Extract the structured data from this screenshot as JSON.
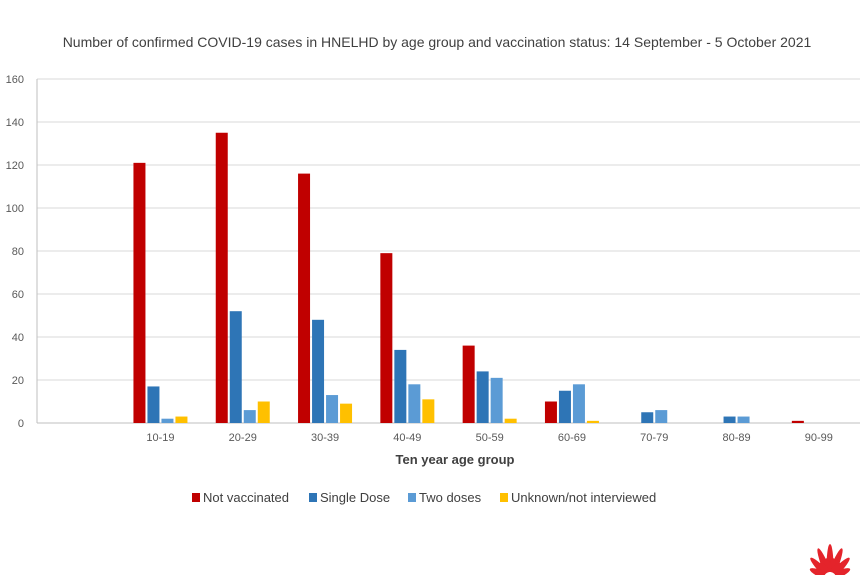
{
  "chart_data": {
    "type": "bar",
    "title": "Number of confirmed COVID-19 cases in HNELHD by age group and vaccination status: 14 September - 5 October 2021",
    "xlabel": "Ten year age group",
    "ylabel": "",
    "ylim": [
      0,
      160
    ],
    "yticks": [
      0,
      20,
      40,
      60,
      80,
      100,
      120,
      140,
      160
    ],
    "grid": true,
    "legend_position": "bottom",
    "categories": [
      "",
      "10-19",
      "20-29",
      "30-39",
      "40-49",
      "50-59",
      "60-69",
      "70-79",
      "80-89",
      "90-99"
    ],
    "series": [
      {
        "name": "Not vaccinated",
        "color": "#C00000",
        "values": [
          0,
          121,
          135,
          116,
          79,
          36,
          10,
          0,
          0,
          1
        ]
      },
      {
        "name": "Single Dose",
        "color": "#2E75B6",
        "values": [
          0,
          17,
          52,
          48,
          34,
          24,
          15,
          5,
          3,
          0
        ]
      },
      {
        "name": "Two doses",
        "color": "#5B9BD5",
        "values": [
          0,
          2,
          6,
          13,
          18,
          21,
          18,
          6,
          3,
          0
        ]
      },
      {
        "name": "Unknown/not interviewed",
        "color": "#FFC000",
        "values": [
          0,
          3,
          10,
          9,
          11,
          2,
          1,
          0,
          0,
          0
        ]
      }
    ]
  },
  "logo": {
    "name": "nsw-waratah-logo",
    "color": "#E4242B"
  }
}
